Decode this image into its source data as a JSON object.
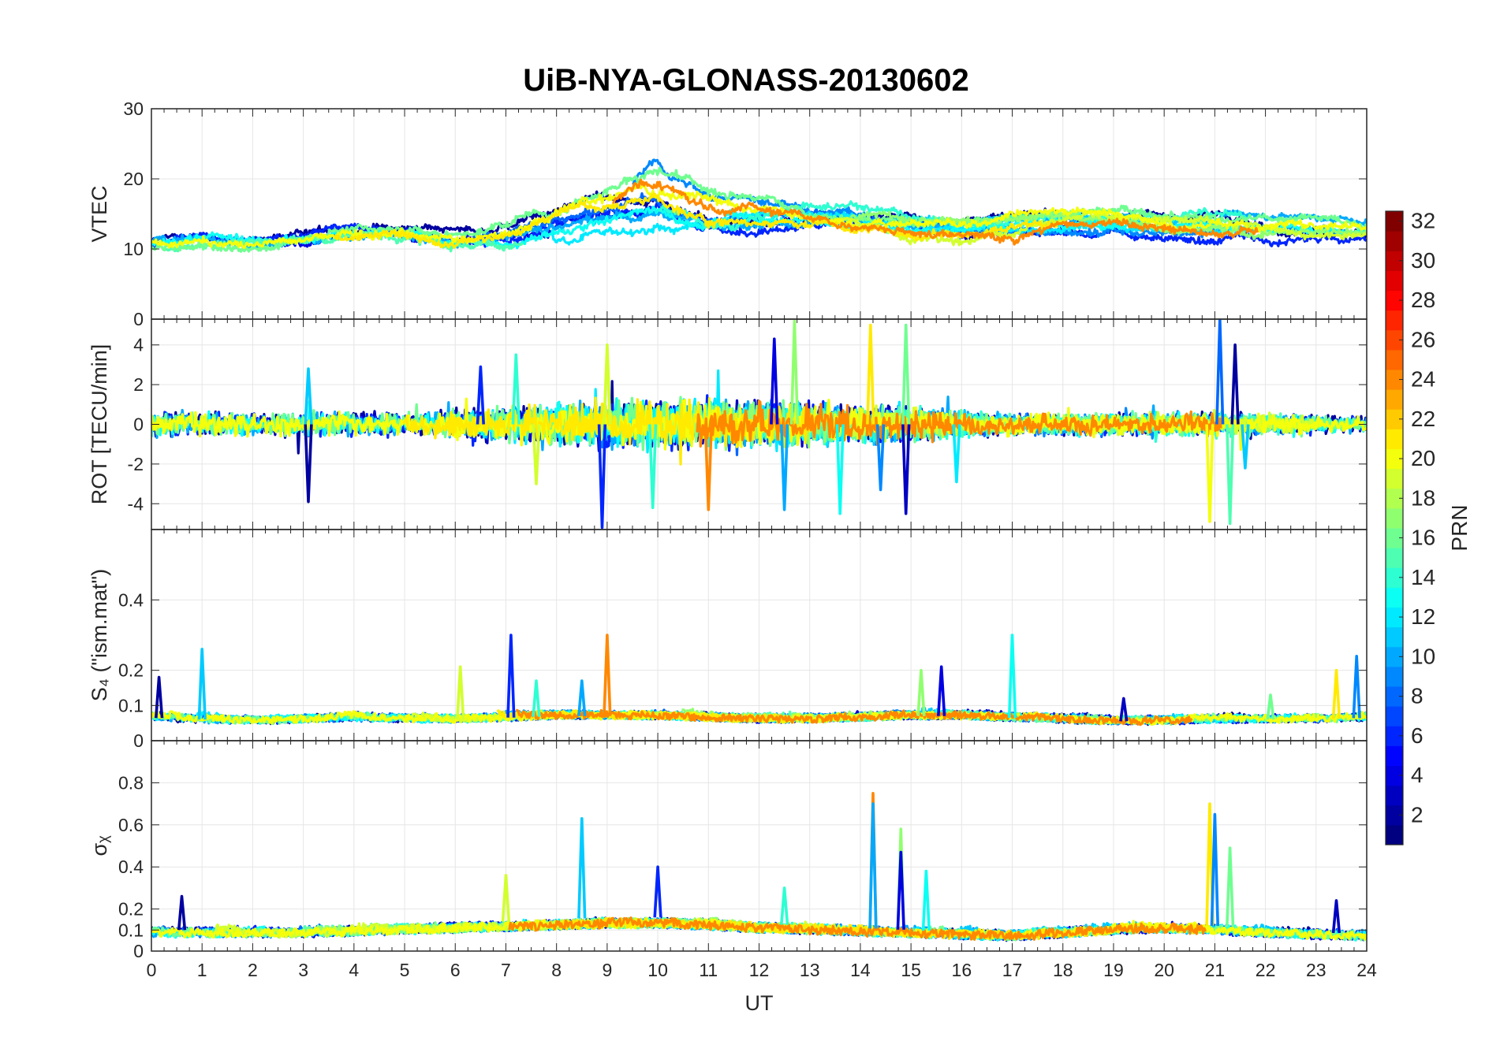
{
  "chart_data": [
    {
      "type": "line",
      "title": "UiB-NYA-GLONASS-20130602",
      "panel": "VTEC",
      "ylabel": "VTEC",
      "xlabel": "",
      "xlim": [
        0,
        24
      ],
      "ylim": [
        0,
        30
      ],
      "yticks": [
        "0",
        "10",
        "20",
        "30"
      ],
      "grid": true,
      "series_profile": {
        "description_units": "TECU",
        "x": [
          0,
          1,
          2,
          3,
          4,
          5,
          6,
          7,
          8,
          9,
          10,
          11,
          12,
          13,
          14,
          15,
          16,
          17,
          18,
          19,
          20,
          21,
          22,
          23,
          24
        ],
        "center": [
          10.5,
          11,
          10.5,
          11,
          12,
          12,
          11,
          12,
          14,
          16,
          17,
          15.5,
          15,
          14.5,
          14,
          13.5,
          13,
          13.5,
          14,
          14,
          13.5,
          14,
          13.5,
          13,
          12.5
        ],
        "spread": [
          1.5,
          1.5,
          1.5,
          1.5,
          2,
          2,
          2,
          2.5,
          3,
          3,
          3.5,
          3,
          2.5,
          2,
          2,
          2,
          2,
          2,
          2,
          2,
          2,
          2.5,
          2,
          2,
          1.5
        ],
        "peak": {
          "x": 9.9,
          "y": 22.5
        }
      }
    },
    {
      "type": "line",
      "panel": "ROT",
      "ylabel": "ROT [TECU/min]",
      "xlim": [
        0,
        24
      ],
      "ylim": [
        -5.3,
        5.3
      ],
      "yticks": [
        "-4",
        "-2",
        "0",
        "2",
        "4"
      ],
      "grid": true,
      "series_profile": {
        "x": [
          0,
          1,
          2,
          3,
          4,
          5,
          6,
          7,
          8,
          9,
          10,
          11,
          12,
          13,
          14,
          15,
          16,
          17,
          18,
          19,
          20,
          21,
          22,
          23,
          24
        ],
        "amplitude": [
          0.9,
          0.8,
          0.7,
          0.8,
          0.8,
          0.7,
          1.0,
          1.2,
          1.4,
          1.6,
          1.7,
          1.6,
          1.5,
          1.4,
          1.2,
          1.1,
          0.8,
          0.7,
          0.7,
          0.7,
          0.7,
          0.9,
          0.7,
          0.6,
          0.5
        ],
        "spikes": [
          [
            3.1,
            -3.9
          ],
          [
            3.1,
            2.8
          ],
          [
            7.6,
            -3.0
          ],
          [
            8.9,
            -5.2
          ],
          [
            9.9,
            -4.2
          ],
          [
            11.0,
            -4.3
          ],
          [
            12.5,
            -4.3
          ],
          [
            12.7,
            5.2
          ],
          [
            12.3,
            4.3
          ],
          [
            13.6,
            -4.5
          ],
          [
            14.2,
            5.0
          ],
          [
            14.4,
            -3.3
          ],
          [
            14.9,
            5.0
          ],
          [
            14.9,
            -4.5
          ],
          [
            15.9,
            -2.9
          ],
          [
            20.9,
            -4.9
          ],
          [
            21.1,
            5.3
          ],
          [
            21.3,
            -5.0
          ],
          [
            21.4,
            4.0
          ],
          [
            21.6,
            -2.2
          ],
          [
            9.0,
            4.0
          ],
          [
            6.5,
            2.9
          ],
          [
            7.2,
            3.5
          ]
        ]
      }
    },
    {
      "type": "line",
      "panel": "S4",
      "ylabel": "S₄ (\"ism.mat\")",
      "xlim": [
        0,
        24
      ],
      "ylim": [
        0,
        0.6
      ],
      "yticks": [
        "0",
        "0.1",
        "0.2",
        "0.4"
      ],
      "grid": true,
      "series_profile": {
        "x": [
          0,
          1,
          2,
          3,
          4,
          5,
          6,
          7,
          8,
          9,
          10,
          11,
          12,
          13,
          14,
          15,
          16,
          17,
          18,
          19,
          20,
          21,
          22,
          23,
          24
        ],
        "baseline": [
          0.065,
          0.06,
          0.055,
          0.06,
          0.065,
          0.06,
          0.06,
          0.065,
          0.07,
          0.07,
          0.07,
          0.065,
          0.06,
          0.06,
          0.065,
          0.07,
          0.07,
          0.065,
          0.06,
          0.055,
          0.055,
          0.06,
          0.06,
          0.06,
          0.065
        ],
        "spikes": [
          [
            0.15,
            0.18
          ],
          [
            1.0,
            0.26
          ],
          [
            6.1,
            0.21
          ],
          [
            7.1,
            0.3
          ],
          [
            7.6,
            0.17
          ],
          [
            9.0,
            0.3
          ],
          [
            8.5,
            0.17
          ],
          [
            15.2,
            0.2
          ],
          [
            15.6,
            0.21
          ],
          [
            17.0,
            0.3
          ],
          [
            23.4,
            0.2
          ],
          [
            23.8,
            0.24
          ],
          [
            22.1,
            0.13
          ],
          [
            19.2,
            0.12
          ]
        ]
      }
    },
    {
      "type": "line",
      "panel": "sigma-phi",
      "ylabel": "σᵪ",
      "xlabel": "UT",
      "xlim": [
        0,
        24
      ],
      "ylim": [
        0,
        1
      ],
      "yticks": [
        "0",
        "0.1",
        "0.2",
        "0.4",
        "0.6",
        "0.8"
      ],
      "xticks": [
        "0",
        "1",
        "2",
        "3",
        "4",
        "5",
        "6",
        "7",
        "8",
        "9",
        "10",
        "11",
        "12",
        "13",
        "14",
        "15",
        "16",
        "17",
        "18",
        "19",
        "20",
        "21",
        "22",
        "23",
        "24"
      ],
      "grid": true,
      "series_profile": {
        "x": [
          0,
          1,
          2,
          3,
          4,
          5,
          6,
          7,
          8,
          9,
          10,
          11,
          12,
          13,
          14,
          15,
          16,
          17,
          18,
          19,
          20,
          21,
          22,
          23,
          24
        ],
        "baseline": [
          0.1,
          0.1,
          0.1,
          0.1,
          0.11,
          0.12,
          0.13,
          0.14,
          0.15,
          0.16,
          0.16,
          0.15,
          0.13,
          0.12,
          0.11,
          0.1,
          0.09,
          0.08,
          0.1,
          0.12,
          0.13,
          0.12,
          0.1,
          0.09,
          0.08
        ],
        "spikes": [
          [
            0.6,
            0.26
          ],
          [
            8.5,
            0.63
          ],
          [
            7.0,
            0.36
          ],
          [
            10.0,
            0.4
          ],
          [
            12.5,
            0.3
          ],
          [
            14.25,
            0.75
          ],
          [
            14.25,
            0.7
          ],
          [
            14.8,
            0.58
          ],
          [
            14.8,
            0.47
          ],
          [
            15.3,
            0.38
          ],
          [
            20.9,
            0.7
          ],
          [
            21.0,
            0.65
          ],
          [
            21.3,
            0.49
          ],
          [
            23.4,
            0.24
          ]
        ]
      }
    }
  ],
  "colorbar": {
    "label": "PRN",
    "min": 1,
    "max": 32,
    "ticks": [
      "2",
      "4",
      "6",
      "8",
      "10",
      "12",
      "14",
      "16",
      "18",
      "20",
      "22",
      "24",
      "26",
      "28",
      "30",
      "32"
    ],
    "colormap": "jet",
    "colors": [
      "#00008f",
      "#0000ff",
      "#00ffff",
      "#ffff00",
      "#ff0000",
      "#800000"
    ]
  },
  "series_prn": [
    2,
    3,
    4,
    6,
    8,
    9,
    10,
    11,
    12,
    13,
    14,
    15,
    16,
    17,
    19,
    20,
    21,
    24
  ]
}
